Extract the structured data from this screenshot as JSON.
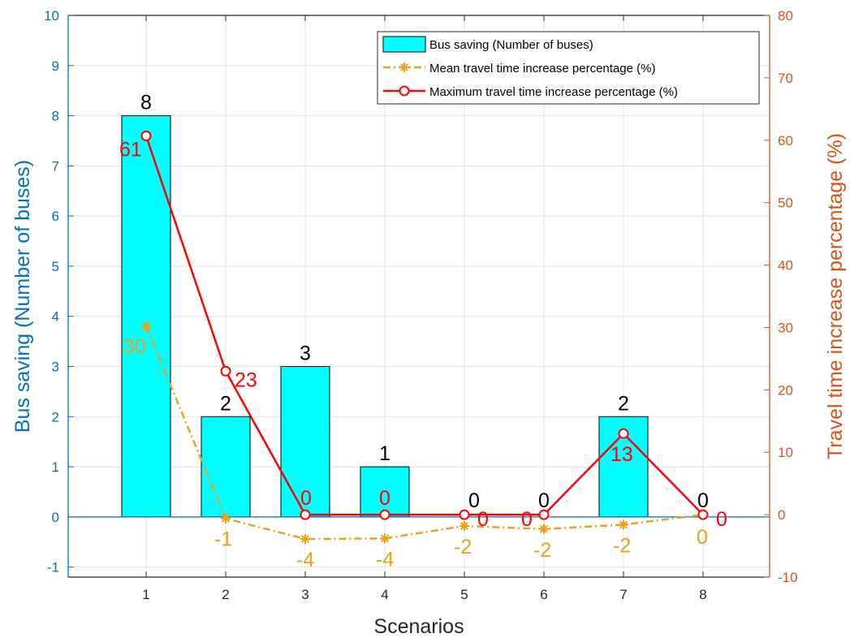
{
  "chart_data": {
    "type": "bar",
    "categories": [
      "1",
      "2",
      "3",
      "4",
      "5",
      "6",
      "7",
      "8"
    ],
    "xlabel": "Scenarios",
    "ylabel_left": "Bus saving (Number of buses)",
    "ylabel_right": "Travel time increase percentage (%)",
    "ylim_left": [
      -1.2,
      10
    ],
    "ylim_right": [
      -10,
      80
    ],
    "yticks_left": [
      "-1",
      "0",
      "1",
      "2",
      "3",
      "4",
      "5",
      "6",
      "7",
      "8",
      "9",
      "10"
    ],
    "yticks_right": [
      "-10",
      "0",
      "10",
      "20",
      "30",
      "40",
      "50",
      "60",
      "70",
      "80"
    ],
    "grid": true,
    "legend_position": "top-right",
    "series": [
      {
        "name": "Bus saving (Number of buses)",
        "kind": "bar",
        "axis": "left",
        "color": "#00FFFF",
        "values": [
          8,
          2,
          3,
          1,
          0,
          0,
          2,
          0
        ],
        "labels": [
          "8",
          "2",
          "3",
          "1",
          "0",
          "0",
          "2",
          "0"
        ]
      },
      {
        "name": "Mean travel time increase percentage (%)",
        "kind": "line",
        "axis": "right",
        "color": "#EDA117",
        "values": [
          30.2,
          -0.6,
          -3.9,
          -3.8,
          -1.8,
          -2.3,
          -1.6,
          0
        ],
        "labels": [
          "30",
          "-1",
          "-4",
          "-4",
          "-2",
          "-2",
          "-2",
          "0"
        ]
      },
      {
        "name": "Maximum travel time increase percentage (%)",
        "kind": "line",
        "axis": "right",
        "color": "#FF0000",
        "values": [
          60.7,
          23,
          0,
          0,
          0,
          0,
          13,
          0
        ],
        "labels": [
          "61",
          "23",
          "0",
          "0",
          "0",
          "0",
          "13",
          "0"
        ]
      }
    ]
  }
}
